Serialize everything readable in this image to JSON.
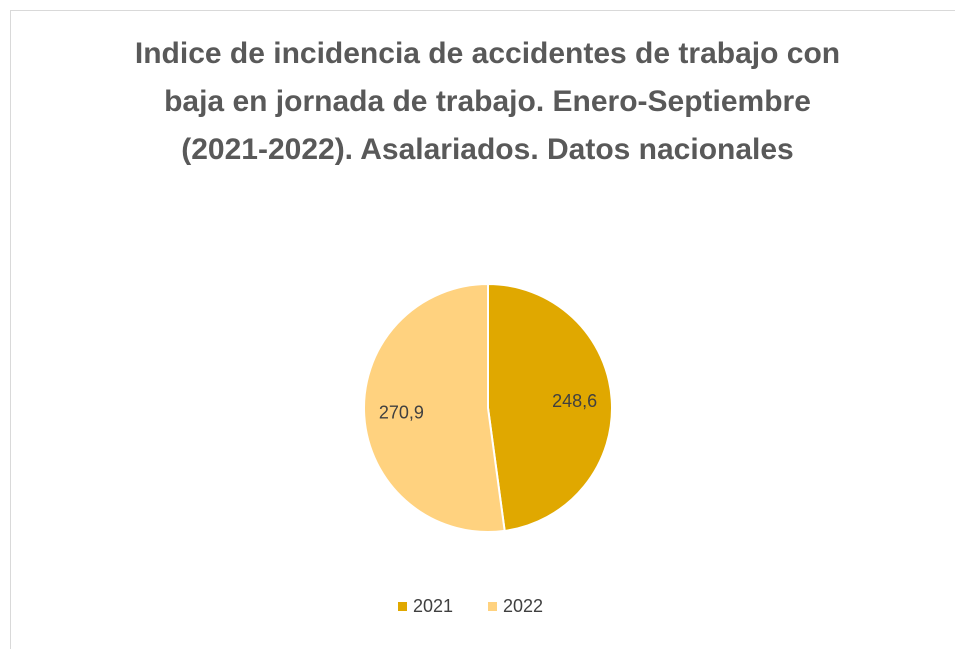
{
  "chart_data": {
    "type": "pie",
    "title": "Indice de incidencia de accidentes de trabajo con baja en jornada de trabajo. Enero-Septiembre (2021-2022). Asalariados. Datos nacionales",
    "categories": [
      "2021",
      "2022"
    ],
    "values": [
      248.6,
      270.9
    ],
    "value_labels": [
      "248,6",
      "270,9"
    ],
    "colors": [
      "#e0a800",
      "#ffd27f"
    ],
    "legend": "bottom"
  }
}
